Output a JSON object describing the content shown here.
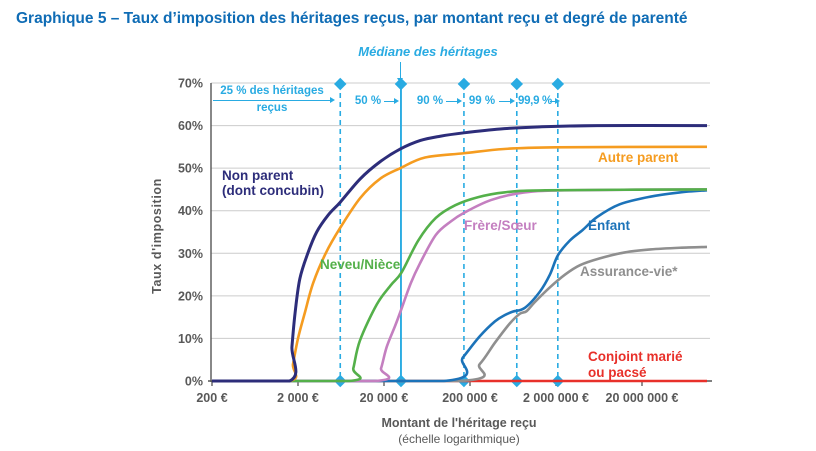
{
  "page": {
    "title": "Graphique 5 – Taux d’imposition des héritages reçus, par montant reçu et degré de parenté"
  },
  "colors": {
    "accent_cyan": "#29abe2",
    "title_blue": "#0f6cb5",
    "axis_text": "#595959",
    "grid": "#cccccc",
    "axis_line": "#555555"
  },
  "chart_data": {
    "type": "line",
    "title": "Taux d'imposition des héritages reçus, par montant reçu et degré de parenté",
    "x_axis": {
      "label": "Montant de l'héritage reçu",
      "sublabel": "(échelle logarithmique)",
      "scale": "log",
      "min": 200,
      "max": 114000000,
      "ticks": [
        200,
        2000,
        20000,
        200000,
        2000000,
        20000000
      ],
      "tick_labels": [
        "200 €",
        "2 000 €",
        "20 000 €",
        "200 000 €",
        "2 000 000 €",
        "20 000 000 €"
      ]
    },
    "y_axis": {
      "label": "Taux d'imposition",
      "min": 0,
      "max": 70,
      "grid": true,
      "ticks": [
        0,
        10,
        20,
        30,
        40,
        50,
        60,
        70
      ],
      "tick_labels": [
        "0%",
        "10%",
        "20%",
        "30%",
        "40%",
        "50%",
        "60%",
        "70%"
      ]
    },
    "median_annotation": {
      "label": "Médiane des héritages"
    },
    "percentiles": [
      {
        "label_line1": "25 % des héritages",
        "label_line2": "reçus",
        "value": 6200,
        "style": "dashed"
      },
      {
        "label": "50 %",
        "value": 31500,
        "style": "solid"
      },
      {
        "label": "90 %",
        "value": 170000,
        "style": "dashed"
      },
      {
        "label": "99 %",
        "value": 700000,
        "style": "dashed"
      },
      {
        "label": "99,9 %",
        "value": 2100000,
        "style": "dashed"
      }
    ],
    "series": [
      {
        "name": "conjoint",
        "label_line1": "Conjoint marié",
        "label_line2": "ou pacsé",
        "color": "#e8302a",
        "width": 2.6,
        "points": [
          [
            200,
            0
          ],
          [
            114000000,
            0
          ]
        ]
      },
      {
        "name": "assurance-vie",
        "label": "Assurance-vie*",
        "color": "#8f8f8f",
        "width": 2.6,
        "points": [
          [
            200,
            0
          ],
          [
            152500,
            0
          ],
          [
            260000,
            4
          ],
          [
            390000,
            9
          ],
          [
            580000,
            13.5
          ],
          [
            760000,
            15.8
          ],
          [
            910000,
            16.4
          ],
          [
            1130000,
            18.5
          ],
          [
            1700000,
            22
          ],
          [
            2550000,
            25
          ],
          [
            3800000,
            27.2
          ],
          [
            6450000,
            28.8
          ],
          [
            12600000,
            30.2
          ],
          [
            25000000,
            30.9
          ],
          [
            55000000,
            31.3
          ],
          [
            114000000,
            31.5
          ]
        ]
      },
      {
        "name": "enfant",
        "label": "Enfant",
        "color": "#1c73b9",
        "width": 2.6,
        "points": [
          [
            200,
            0
          ],
          [
            100000,
            0
          ],
          [
            165000,
            5.5
          ],
          [
            260000,
            10.5
          ],
          [
            390000,
            14
          ],
          [
            510000,
            15.5
          ],
          [
            630000,
            16.3
          ],
          [
            870000,
            17.2
          ],
          [
            1300000,
            21
          ],
          [
            1700000,
            25
          ],
          [
            2100000,
            29.5
          ],
          [
            2900000,
            33
          ],
          [
            4100000,
            35.5
          ],
          [
            6000000,
            38.5
          ],
          [
            11000000,
            41.5
          ],
          [
            25000000,
            43.3
          ],
          [
            55000000,
            44.3
          ],
          [
            114000000,
            44.8
          ]
        ]
      },
      {
        "name": "frere-soeur",
        "label": "Frère/Sœur",
        "color": "#c47fc0",
        "width": 2.6,
        "points": [
          [
            200,
            0
          ],
          [
            15900,
            0
          ],
          [
            18500,
            3
          ],
          [
            21500,
            8
          ],
          [
            27000,
            13
          ],
          [
            32000,
            17
          ],
          [
            41000,
            23
          ],
          [
            52000,
            27.5
          ],
          [
            80000,
            34.3
          ],
          [
            120000,
            37.5
          ],
          [
            170000,
            39.5
          ],
          [
            350000,
            42.5
          ],
          [
            800000,
            44.2
          ],
          [
            2500000,
            44.8
          ],
          [
            114000000,
            45
          ]
        ]
      },
      {
        "name": "neveu-niece",
        "label": "Neveu/Nièce",
        "color": "#54b04a",
        "width": 2.6,
        "points": [
          [
            200,
            0
          ],
          [
            7900,
            0
          ],
          [
            8800,
            3
          ],
          [
            10500,
            9.5
          ],
          [
            16500,
            18
          ],
          [
            24000,
            22.5
          ],
          [
            32000,
            25.5
          ],
          [
            50000,
            33
          ],
          [
            80000,
            38.3
          ],
          [
            135000,
            41.3
          ],
          [
            250000,
            43.2
          ],
          [
            500000,
            44.3
          ],
          [
            1500000,
            44.8
          ],
          [
            114000000,
            45
          ]
        ]
      },
      {
        "name": "autre-parent",
        "label": "Autre parent",
        "color": "#f59c20",
        "width": 2.6,
        "points": [
          [
            200,
            0
          ],
          [
            1594,
            0
          ],
          [
            1750,
            4
          ],
          [
            2000,
            10
          ],
          [
            2400,
            16
          ],
          [
            3000,
            23
          ],
          [
            4200,
            30
          ],
          [
            6200,
            36
          ],
          [
            10600,
            43
          ],
          [
            18000,
            47.5
          ],
          [
            31000,
            50
          ],
          [
            60000,
            52.5
          ],
          [
            170000,
            53.5
          ],
          [
            500000,
            54.5
          ],
          [
            2000000,
            54.9
          ],
          [
            114000000,
            55
          ]
        ]
      },
      {
        "name": "non-parent",
        "label_line1": "Non parent",
        "label_line2": "(dont concubin)",
        "color": "#2d2d7a",
        "width": 3,
        "points": [
          [
            200,
            0
          ],
          [
            1594,
            0
          ],
          [
            1700,
            8
          ],
          [
            1850,
            16
          ],
          [
            2100,
            24
          ],
          [
            2600,
            30
          ],
          [
            3300,
            35
          ],
          [
            4500,
            39
          ],
          [
            6200,
            42
          ],
          [
            10600,
            47.5
          ],
          [
            18000,
            51.5
          ],
          [
            31000,
            54.5
          ],
          [
            53000,
            56.5
          ],
          [
            90000,
            57.5
          ],
          [
            170000,
            58.3
          ],
          [
            450000,
            59.2
          ],
          [
            1300000,
            59.7
          ],
          [
            6000000,
            60
          ],
          [
            114000000,
            60
          ]
        ]
      }
    ]
  }
}
